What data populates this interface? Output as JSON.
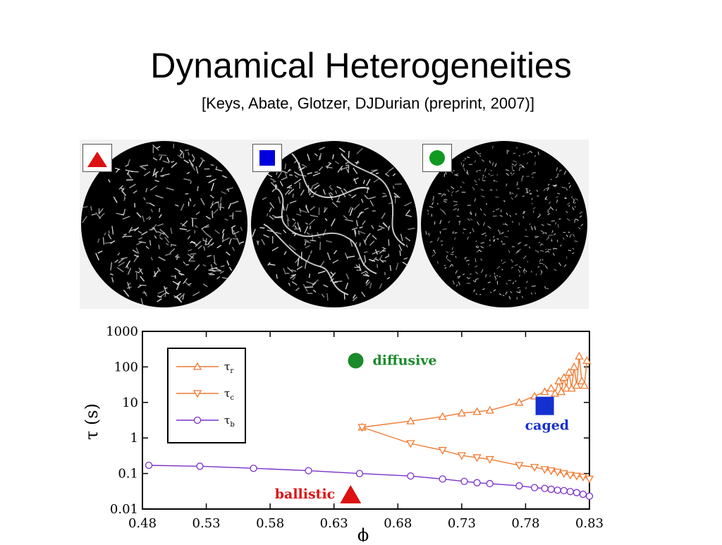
{
  "slide": {
    "title": "Dynamical Heterogeneities",
    "subtitle": "[Keys, Abate, Glotzer, DJDurian (preprint, 2007)]"
  },
  "panels": [
    {
      "marker": "red-triangle-icon",
      "color": "#dd1111",
      "pattern": "uniform"
    },
    {
      "marker": "blue-square-icon",
      "color": "#0000dd",
      "pattern": "clustered"
    },
    {
      "marker": "green-circle-icon",
      "color": "#119922",
      "pattern": "fine"
    }
  ],
  "chart_data": {
    "type": "scatter",
    "xlabel": "ϕ",
    "ylabel": "τ (s)",
    "xlim": [
      0.48,
      0.83
    ],
    "ylim": [
      0.01,
      1000
    ],
    "yscale": "log",
    "x_ticks": [
      "0.48",
      "0.53",
      "0.58",
      "0.63",
      "0.68",
      "0.73",
      "0.78",
      "0.83"
    ],
    "y_ticks": [
      "0.01",
      "0.1",
      "1",
      "10",
      "100",
      "1000"
    ],
    "legend_position": "top-left",
    "series": [
      {
        "name": "τr",
        "color": "#f07a30",
        "marker": "triangle-up",
        "points": [
          [
            0.652,
            2
          ],
          [
            0.69,
            3
          ],
          [
            0.715,
            4
          ],
          [
            0.73,
            5
          ],
          [
            0.742,
            5.5
          ],
          [
            0.752,
            6
          ],
          [
            0.775,
            10
          ],
          [
            0.787,
            15
          ],
          [
            0.795,
            20
          ],
          [
            0.8,
            25
          ],
          [
            0.803,
            18
          ],
          [
            0.806,
            40
          ],
          [
            0.808,
            20
          ],
          [
            0.81,
            50
          ],
          [
            0.812,
            25
          ],
          [
            0.814,
            70
          ],
          [
            0.816,
            25
          ],
          [
            0.818,
            100
          ],
          [
            0.82,
            30
          ],
          [
            0.822,
            200
          ],
          [
            0.824,
            40
          ],
          [
            0.826,
            30
          ],
          [
            0.828,
            150
          ]
        ]
      },
      {
        "name": "τc",
        "color": "#f07a30",
        "marker": "triangle-down",
        "points": [
          [
            0.652,
            2
          ],
          [
            0.69,
            0.7
          ],
          [
            0.715,
            0.45
          ],
          [
            0.73,
            0.32
          ],
          [
            0.742,
            0.28
          ],
          [
            0.752,
            0.25
          ],
          [
            0.775,
            0.17
          ],
          [
            0.787,
            0.15
          ],
          [
            0.795,
            0.13
          ],
          [
            0.8,
            0.12
          ],
          [
            0.805,
            0.11
          ],
          [
            0.81,
            0.1
          ],
          [
            0.815,
            0.09
          ],
          [
            0.82,
            0.085
          ],
          [
            0.825,
            0.08
          ],
          [
            0.83,
            0.07
          ]
        ]
      },
      {
        "name": "τb",
        "color": "#7a30c8",
        "marker": "circle",
        "points": [
          [
            0.485,
            0.17
          ],
          [
            0.525,
            0.16
          ],
          [
            0.567,
            0.14
          ],
          [
            0.61,
            0.12
          ],
          [
            0.65,
            0.1
          ],
          [
            0.69,
            0.085
          ],
          [
            0.715,
            0.07
          ],
          [
            0.732,
            0.06
          ],
          [
            0.742,
            0.055
          ],
          [
            0.752,
            0.052
          ],
          [
            0.775,
            0.045
          ],
          [
            0.787,
            0.04
          ],
          [
            0.795,
            0.038
          ],
          [
            0.8,
            0.036
          ],
          [
            0.805,
            0.034
          ],
          [
            0.81,
            0.033
          ],
          [
            0.815,
            0.031
          ],
          [
            0.82,
            0.029
          ],
          [
            0.825,
            0.026
          ],
          [
            0.83,
            0.023
          ]
        ]
      }
    ],
    "annotations": [
      {
        "label": "diffusive",
        "color": "#1a8a2a",
        "marker": "circle",
        "x": 0.647,
        "y": 150
      },
      {
        "label": "caged",
        "color": "#1530d0",
        "marker": "square",
        "x": 0.795,
        "y": 8
      },
      {
        "label": "ballistic",
        "color": "#dd1111",
        "marker": "triangle",
        "x": 0.643,
        "y": 0.025
      }
    ]
  }
}
